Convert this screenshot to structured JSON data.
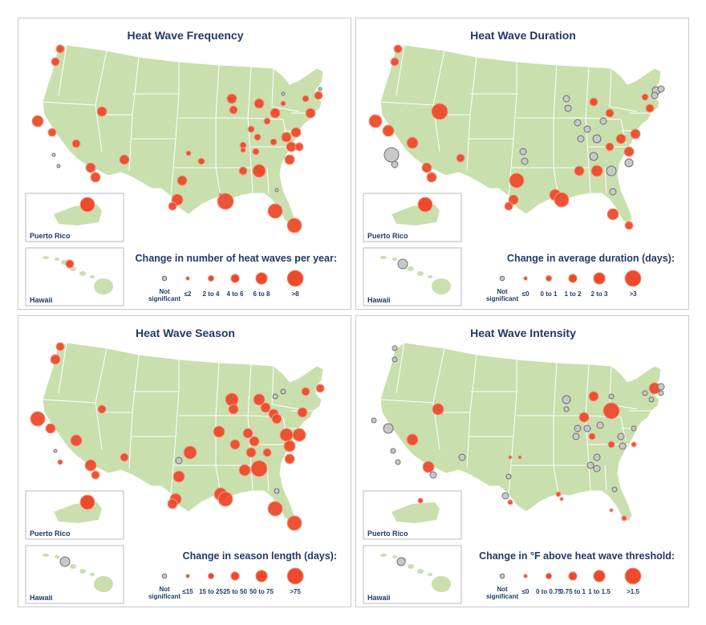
{
  "colors": {
    "significant": "#ec4a2b",
    "significant_stroke": "#f59a84",
    "not_significant": "#c8c8c8",
    "not_significant_stroke": "#707070",
    "land": "#c9dfae",
    "title": "#1f3a68"
  },
  "panels": [
    {
      "title": "Heat Wave Frequency",
      "legend_title": "Change in number of heat waves per year:",
      "legend": [
        "Not significant",
        "≤2",
        "2 to 4",
        "4 to 6",
        "6 to 8",
        ">8"
      ],
      "puerto_rico_label": "Puerto Rico",
      "hawaii_label": "Hawaii"
    },
    {
      "title": "Heat Wave Duration",
      "legend_title": "Change in average duration (days):",
      "legend": [
        "Not significant",
        "≤0",
        "0 to 1",
        "1 to 2",
        "2 to 3",
        ">3"
      ],
      "puerto_rico_label": "Puerto Rico",
      "hawaii_label": "Hawaii"
    },
    {
      "title": "Heat Wave Season",
      "legend_title": "Change in season length (days):",
      "legend": [
        "Not significant",
        "≤15",
        "15 to 25",
        "25 to 50",
        "50 to 75",
        ">75"
      ],
      "puerto_rico_label": "Puerto Rico",
      "hawaii_label": "Hawaii"
    },
    {
      "title": "Heat Wave Intensity",
      "legend_title": "Change in °F above heat wave threshold:",
      "legend": [
        "Not significant",
        "≤0",
        "0 to 0.75",
        "0.75 to 1",
        "1 to 1.5",
        ">1.5"
      ],
      "puerto_rico_label": "Puerto Rico",
      "hawaii_label": "Hawaii"
    }
  ]
}
